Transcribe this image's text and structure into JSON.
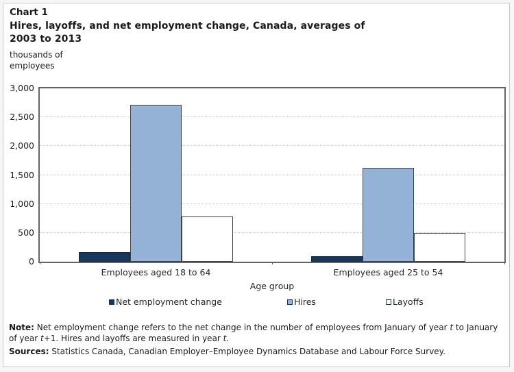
{
  "header": {
    "chart_number": "Chart 1",
    "title_lines": [
      "Hires, layoffs, and net employment change, Canada, averages of",
      "2003 to 2013"
    ],
    "unit_label_lines": [
      "thousands of",
      "employees"
    ]
  },
  "chart_data": {
    "type": "bar",
    "title": "Hires, layoffs, and net employment change, Canada, averages of 2003 to 2013",
    "ylabel": "thousands of employees",
    "xlabel": "Age group",
    "categories": [
      "Employees aged 18 to 64",
      "Employees aged 25 to 54"
    ],
    "series": [
      {
        "name": "Net employment change",
        "color": "#17375D",
        "border_color": "#102742",
        "values": [
          170,
          90
        ]
      },
      {
        "name": "Hires",
        "color": "#95B3D7",
        "border_color": "#404040",
        "values": [
          2710,
          1630
        ]
      },
      {
        "name": "Layoffs",
        "color": "#FFFFFF",
        "border_color": "#404040",
        "values": [
          780,
          500
        ]
      }
    ],
    "ylim": [
      0,
      3000
    ],
    "yticks": [
      0,
      500,
      1000,
      1500,
      2000,
      2500,
      3000
    ],
    "grid": "horizontal-dotted",
    "legend_position": "bottom"
  },
  "footnotes": {
    "note_label": "Note:",
    "note_segments": [
      {
        "t": " Net employment change refers to the net change in the number of employees from January of year "
      },
      {
        "t": "t",
        "i": true
      },
      {
        "t": " to January of year "
      },
      {
        "t": "t",
        "i": true
      },
      {
        "t": "+1. Hires and layoffs are measured in year "
      },
      {
        "t": "t",
        "i": true
      },
      {
        "t": "."
      }
    ],
    "sources_label": "Sources:",
    "sources_text": " Statistics Canada, Canadian Employer–Employee Dynamics Database and Labour Force Survey."
  },
  "colors": {
    "navy": "#17375D",
    "light_blue": "#95B3D7",
    "bar_border": "#404040",
    "plot_border": "#646464",
    "gridline": "#C9C9C9",
    "frame_border": "#C6C6C6",
    "background": "#FFFFFF",
    "text": "#1A1A1A"
  }
}
